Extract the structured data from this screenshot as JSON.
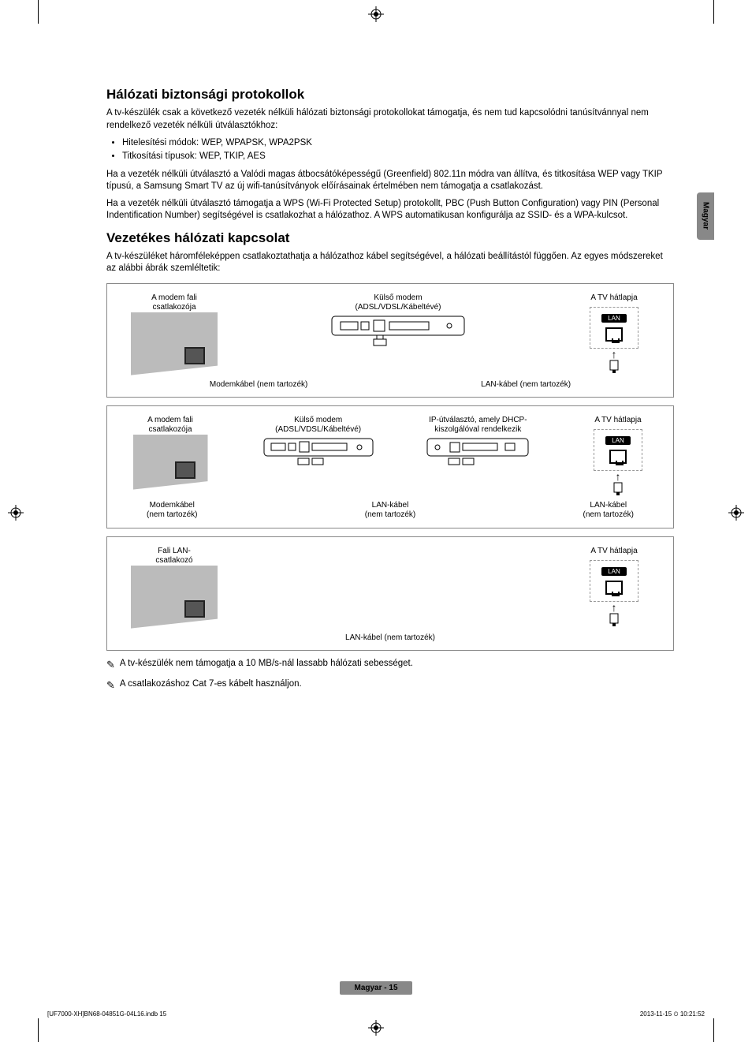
{
  "language_tab": "Magyar",
  "section1": {
    "title": "Hálózati biztonsági protokollok",
    "p1": "A tv-készülék csak a következő vezeték nélküli hálózati biztonsági protokollokat támogatja, és nem tud kapcsolódni tanúsítvánnyal nem rendelkező vezeték nélküli útválasztókhoz:",
    "bullets": [
      "Hitelesítési módok: WEP, WPAPSK, WPA2PSK",
      "Titkosítási típusok: WEP, TKIP, AES"
    ],
    "p2": "Ha a vezeték nélküli útválasztó a Valódi magas átbocsátóképességű (Greenfield) 802.11n módra van állítva, és titkosítása WEP vagy TKIP típusú, a Samsung Smart TV az új wifi-tanúsítványok előírásainak értelmében nem támogatja a csatlakozást.",
    "p3": "Ha a vezeték nélküli útválasztó támogatja a WPS (Wi-Fi Protected Setup) protokollt, PBC (Push Button Configuration) vagy PIN (Personal Indentification Number) segítségével is csatlakozhat a hálózathoz. A WPS automatikusan konfigurálja az SSID- és a WPA-kulcsot."
  },
  "section2": {
    "title": "Vezetékes hálózati kapcsolat",
    "p1": "A tv-készüléket háromféleképpen csatlakoztathatja a hálózathoz kábel segítségével, a hálózati beállítástól függően. Az egyes módszereket az alábbi ábrák szemléltetik:"
  },
  "diagram1": {
    "wall_label": "A modem fali\ncsatlakozója",
    "modem_label": "Külső modem\n(ADSL/VDSL/Kábeltévé)",
    "tv_label": "A TV hátlapja",
    "lan_chip": "LAN",
    "cable1": "Modemkábel (nem tartozék)",
    "cable2": "LAN-kábel (nem tartozék)"
  },
  "diagram2": {
    "wall_label": "A modem fali\ncsatlakozója",
    "modem_label": "Külső modem\n(ADSL/VDSL/Kábeltévé)",
    "router_label": "IP-útválasztó, amely DHCP-\nkiszolgálóval rendelkezik",
    "tv_label": "A TV hátlapja",
    "lan_chip": "LAN",
    "cable1": "Modemkábel\n(nem tartozék)",
    "cable2": "LAN-kábel\n(nem tartozék)",
    "cable3": "LAN-kábel\n(nem tartozék)"
  },
  "diagram3": {
    "wall_label": "Fali LAN-\ncsatlakozó",
    "tv_label": "A TV hátlapja",
    "lan_chip": "LAN",
    "cable1": "LAN-kábel (nem tartozék)"
  },
  "notes": {
    "n1": "A tv-készülék nem támogatja a 10 MB/s-nál lassabb hálózati sebességet.",
    "n2": "A csatlakozáshoz Cat 7-es kábelt használjon."
  },
  "footer": {
    "page": "Magyar - 15",
    "file": "[UF7000-XH]BN68-04851G-04L16.indb   15",
    "timestamp": "2013-11-15   ⏲ 10:21:52"
  },
  "colors": {
    "border": "#888888",
    "wall": "#bbbbbb",
    "tab_bg": "#888888",
    "text": "#000000"
  }
}
